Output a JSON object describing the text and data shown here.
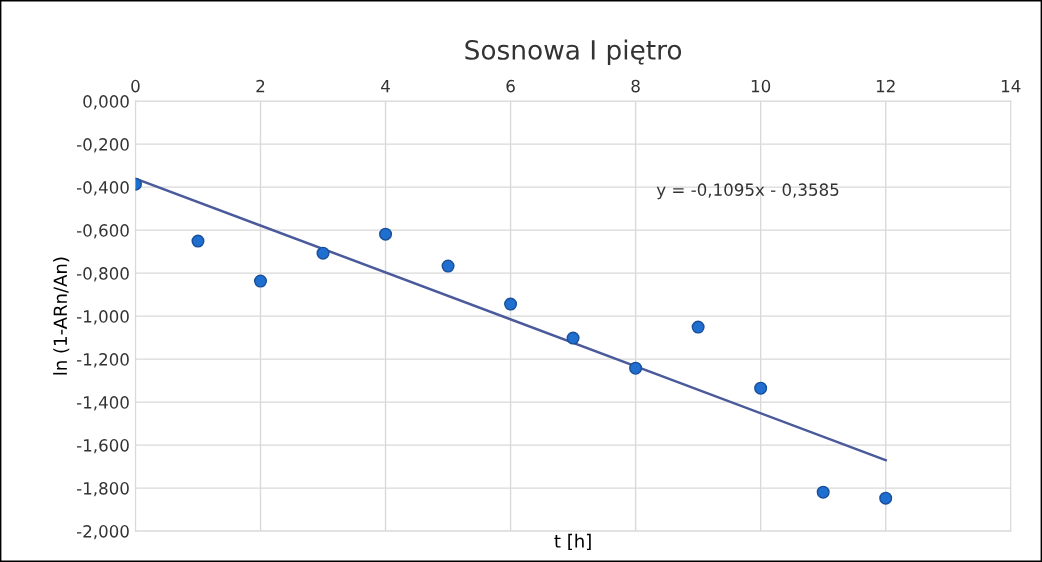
{
  "chart_data": {
    "type": "scatter",
    "title": "Sosnowa I piętro",
    "xlabel": "t [h]",
    "ylabel": "ln (1-ARn/An)",
    "x": [
      0,
      1,
      2,
      3,
      4,
      5,
      6,
      7,
      8,
      9,
      10,
      11,
      12
    ],
    "series": [
      {
        "color": "#1f6fd0",
        "marker": "circle",
        "values": [
          -0.386,
          -0.651,
          -0.837,
          -0.707,
          -0.619,
          -0.767,
          -0.944,
          -1.102,
          -1.242,
          -1.051,
          -1.335,
          -1.819,
          -1.847
        ]
      },
      {
        "type": "line",
        "color": "#4a5a9a",
        "marker": "none",
        "line_style": "solid",
        "x": [
          0,
          12
        ],
        "values": [
          -0.36,
          -1.67
        ]
      }
    ],
    "annotations": [
      "y = -0,1095x - 0,3585"
    ],
    "xlim": [
      0,
      14
    ],
    "xticks": [
      0,
      2,
      4,
      6,
      8,
      10,
      12,
      14
    ],
    "ylim": [
      -2,
      0
    ],
    "yticks": [
      {
        "value": 0,
        "label": "0,000"
      },
      {
        "value": -0.2,
        "label": "-0,200"
      },
      {
        "value": -0.4,
        "label": "-0,400"
      },
      {
        "value": -0.6,
        "label": "-0,600"
      },
      {
        "value": -0.8,
        "label": "-0,800"
      },
      {
        "value": -1.0,
        "label": "-1,000"
      },
      {
        "value": -1.2,
        "label": "-1,200"
      },
      {
        "value": -1.4,
        "label": "-1,400"
      },
      {
        "value": -1.6,
        "label": "-1,600"
      },
      {
        "value": -1.8,
        "label": "-1,800"
      },
      {
        "value": -2.0,
        "label": "-2,000"
      }
    ],
    "grid": true,
    "legend": false
  }
}
